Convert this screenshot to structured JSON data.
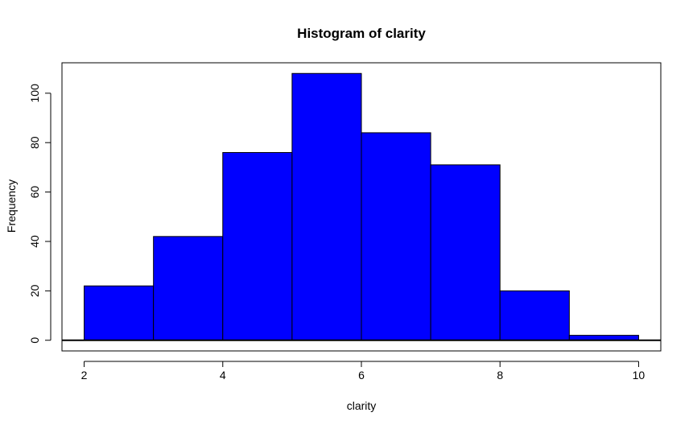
{
  "chart_data": {
    "type": "bar",
    "title": "Histogram of clarity",
    "xlabel": "clarity",
    "ylabel": "Frequency",
    "bins": [
      {
        "x0": 2,
        "x1": 3,
        "count": 22
      },
      {
        "x0": 3,
        "x1": 4,
        "count": 42
      },
      {
        "x0": 4,
        "x1": 5,
        "count": 76
      },
      {
        "x0": 5,
        "x1": 6,
        "count": 108
      },
      {
        "x0": 6,
        "x1": 7,
        "count": 84
      },
      {
        "x0": 7,
        "x1": 8,
        "count": 71
      },
      {
        "x0": 8,
        "x1": 9,
        "count": 20
      },
      {
        "x0": 9,
        "x1": 10,
        "count": 2
      }
    ],
    "xticks": [
      2,
      4,
      6,
      8,
      10
    ],
    "yticks": [
      0,
      20,
      40,
      60,
      80,
      100
    ],
    "xlim": [
      1.68,
      10.32
    ],
    "ylim": [
      -4.32,
      112.32
    ],
    "bar_color": "#0000ff",
    "edge_color": "#000000",
    "baseline": 0,
    "grid": false,
    "legend": "none"
  }
}
